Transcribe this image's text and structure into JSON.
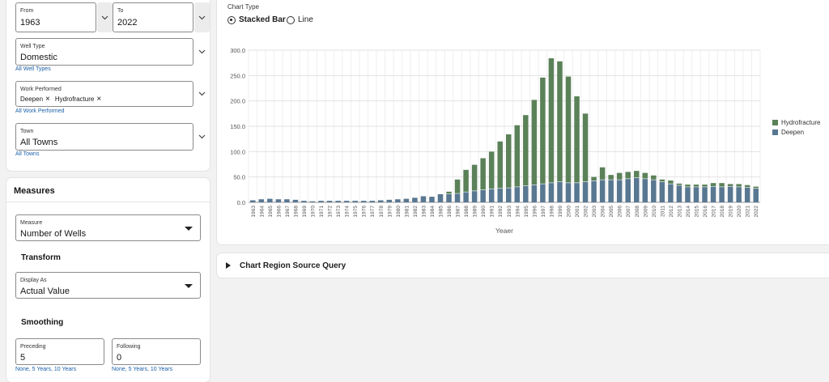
{
  "filters": {
    "from": {
      "label": "From",
      "value": "1963"
    },
    "to": {
      "label": "To",
      "value": "2022"
    },
    "well_type": {
      "label": "Well Type",
      "value": "Domestic",
      "link": "All Well Types"
    },
    "work_performed": {
      "label": "Work Performed",
      "chips": [
        "Deepen",
        "Hydrofracture"
      ],
      "link": "All Work Performed"
    },
    "town": {
      "label": "Town",
      "value": "All Towns",
      "link": "All Towns"
    }
  },
  "measures": {
    "title": "Measures",
    "measure": {
      "label": "Measure",
      "value": "Number of Wells"
    },
    "transform_title": "Transform",
    "display_as": {
      "label": "Display As",
      "value": "Actual Value"
    },
    "smoothing_title": "Smoothing",
    "preceding": {
      "label": "Preceding",
      "value": "5",
      "hint": "None, 5 Years, 10 Years"
    },
    "following": {
      "label": "Following",
      "value": "0",
      "hint": "None, 5 Years, 10 Years"
    }
  },
  "chart_type": {
    "label": "Chart Type",
    "options": [
      "Stacked Bar",
      "Line"
    ],
    "selected": "Stacked Bar"
  },
  "query_region": {
    "label": "Chart Region Source Query"
  },
  "colors": {
    "hydrofracture": "#5b8159",
    "deepen": "#587791"
  },
  "chart_data": {
    "type": "bar",
    "stacked": true,
    "xlabel": "Yeaer",
    "ylabel": "",
    "ylim": [
      0,
      300
    ],
    "yticks": [
      "0.0",
      "50.0",
      "100.0",
      "150.0",
      "200.0",
      "250.0",
      "300.0"
    ],
    "legend": "right",
    "grid": true,
    "categories": [
      "1963",
      "1964",
      "1965",
      "1966",
      "1967",
      "1968",
      "1969",
      "1970",
      "1971",
      "1972",
      "1973",
      "1974",
      "1975",
      "1976",
      "1977",
      "1978",
      "1979",
      "1980",
      "1981",
      "1982",
      "1983",
      "1984",
      "1985",
      "1986",
      "1987",
      "1988",
      "1989",
      "1990",
      "1991",
      "1992",
      "1993",
      "1994",
      "1995",
      "1996",
      "1997",
      "1998",
      "1999",
      "2000",
      "2001",
      "2002",
      "2003",
      "2004",
      "2005",
      "2006",
      "2007",
      "2008",
      "2009",
      "2010",
      "2011",
      "2012",
      "2013",
      "2014",
      "2015",
      "2016",
      "2017",
      "2018",
      "2019",
      "2020",
      "2021",
      "2022"
    ],
    "series": [
      {
        "name": "Deepen",
        "values": [
          4,
          6,
          7,
          6,
          6,
          5,
          3,
          2,
          3,
          3,
          3,
          3,
          3,
          3,
          3,
          4,
          5,
          6,
          7,
          9,
          12,
          11,
          16,
          16,
          17,
          20,
          22,
          24,
          26,
          27,
          28,
          30,
          32,
          34,
          36,
          38,
          40,
          38,
          38,
          40,
          42,
          44,
          44,
          44,
          46,
          48,
          46,
          44,
          40,
          36,
          33,
          30,
          30,
          30,
          31,
          30,
          31,
          30,
          29,
          27
        ]
      },
      {
        "name": "Hydrofracture",
        "values": [
          0,
          0,
          0,
          0,
          0,
          0,
          0,
          0,
          0,
          0,
          0,
          0,
          0,
          0,
          0,
          0,
          0,
          0,
          0,
          0,
          0,
          0,
          0,
          5,
          28,
          44,
          52,
          63,
          74,
          93,
          106,
          122,
          140,
          168,
          210,
          246,
          238,
          210,
          171,
          135,
          8,
          25,
          10,
          14,
          14,
          14,
          12,
          9,
          5,
          7,
          4,
          5,
          5,
          5,
          7,
          8,
          5,
          6,
          5,
          4
        ]
      }
    ]
  }
}
